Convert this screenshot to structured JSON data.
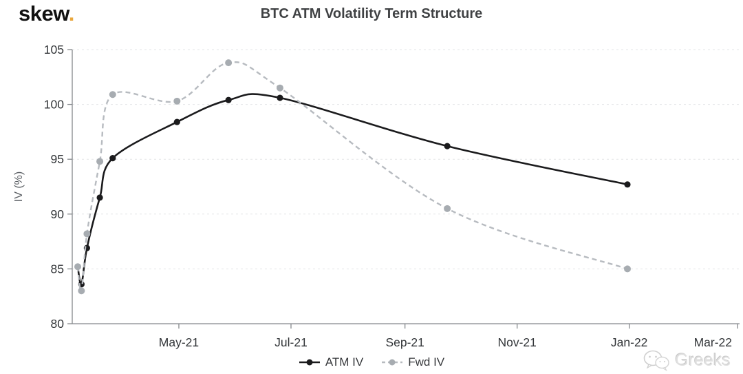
{
  "logo": {
    "text": "skew",
    "dot": "."
  },
  "header": {
    "title": "BTC ATM Volatility Term Structure"
  },
  "watermark": {
    "label": "Greeks",
    "icon": "wechat-icon"
  },
  "colors": {
    "accent_gold": "#e9a63b",
    "axis": "#85888c",
    "grid": "#e3e5e7",
    "tick_text": "#333639",
    "title_text": "#404244",
    "legend_text": "#37393c",
    "watermark_text": "#e0e0e0"
  },
  "chart_data": {
    "type": "line",
    "title": "BTC ATM Volatility Term Structure",
    "xlabel": "",
    "ylabel": "IV (%)",
    "ylim": [
      80,
      105
    ],
    "yticks": [
      80,
      85,
      90,
      95,
      100,
      105
    ],
    "grid": "horizontal-dashed",
    "legend_position": "bottom-center",
    "x_domain": [
      "2021-03-04",
      "2022-03-02"
    ],
    "x_ticks": [
      {
        "label": "May-21",
        "date": "2021-05-01"
      },
      {
        "label": "Jul-21",
        "date": "2021-07-01"
      },
      {
        "label": "Sep-21",
        "date": "2021-09-01"
      },
      {
        "label": "Nov-21",
        "date": "2021-11-01"
      },
      {
        "label": "Jan-22",
        "date": "2022-01-01"
      },
      {
        "label": "Mar-22",
        "date": "2022-03-01"
      }
    ],
    "x": [
      "2021-03-07",
      "2021-03-09",
      "2021-03-12",
      "2021-03-19",
      "2021-03-26",
      "2021-04-30",
      "2021-05-28",
      "2021-06-25",
      "2021-09-24",
      "2021-12-31"
    ],
    "series": [
      {
        "name": "ATM IV",
        "style": "solid",
        "color": "#1b1b1d",
        "marker_color": "#1b1b1d",
        "values": [
          85.2,
          83.6,
          86.9,
          91.5,
          95.1,
          98.4,
          100.4,
          100.6,
          96.2,
          92.7
        ]
      },
      {
        "name": "Fwd IV",
        "style": "dashed",
        "color": "#b7bbc0",
        "marker_color": "#a7acb1",
        "values": [
          85.2,
          83.0,
          88.2,
          94.8,
          100.9,
          100.3,
          103.8,
          101.5,
          90.5,
          85.0
        ]
      }
    ]
  }
}
